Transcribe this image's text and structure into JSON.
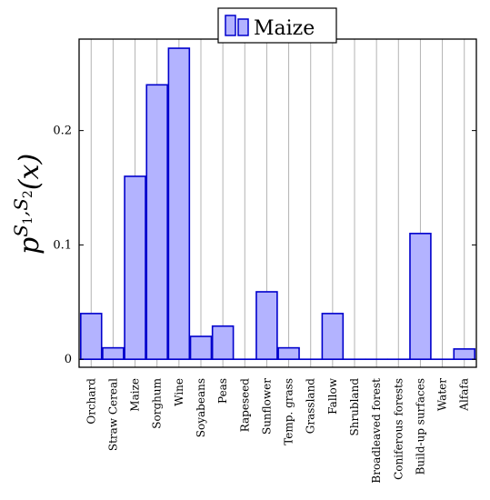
{
  "chart_data": {
    "type": "bar",
    "categories": [
      "Orchard",
      "Straw Cereal",
      "Maize",
      "Sorghum",
      "Wine",
      "Soyabeans",
      "Peas",
      "Rapeseed",
      "Sunflower",
      "Temp. grass",
      "Grassland",
      "Fallow",
      "Shrubland",
      "Broadleaved forest",
      "Coniferous forests",
      "Build-up surfaces",
      "Water",
      "Alfafa"
    ],
    "series": [
      {
        "name": "Maize",
        "values": [
          0.04,
          0.01,
          0.16,
          0.24,
          0.272,
          0.02,
          0.029,
          0.0,
          0.059,
          0.01,
          0.0,
          0.04,
          0.0,
          0.0,
          0.0,
          0.11,
          0.0,
          0.009
        ]
      }
    ],
    "ylabel": {
      "base": "p",
      "sup_1": "S",
      "sup_1_sub": "1",
      "sup_sep": ",",
      "sup_2": "S",
      "sup_2_sub": "2",
      "arg": "(x)"
    },
    "yticks": [
      "0",
      "0.1",
      "0.2"
    ],
    "ytick_values": [
      0,
      0.1,
      0.2
    ],
    "ylim": [
      -0.007,
      0.28
    ],
    "grid": "vertical",
    "legend_position": "top-center",
    "colors": {
      "fill": "#b3b3ff",
      "stroke": "#0000cc",
      "grid": "#b3b3b3",
      "axis": "#000000"
    }
  }
}
